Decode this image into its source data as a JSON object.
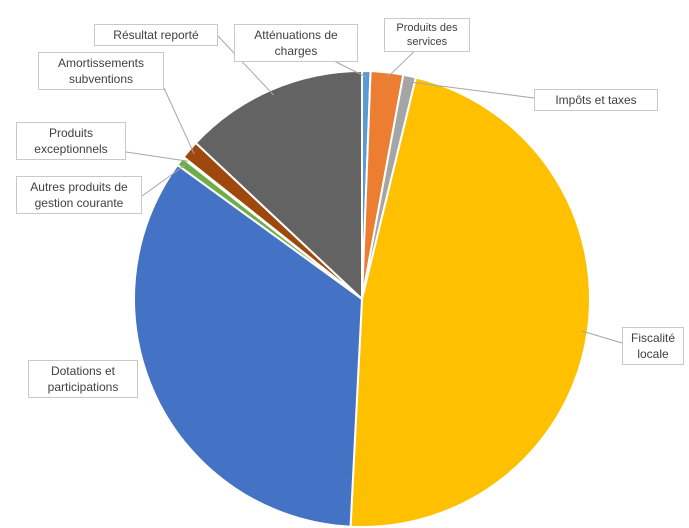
{
  "chart_data": {
    "type": "pie",
    "title": "",
    "legend": "none",
    "slices": [
      {
        "label": "Atténuations de charges",
        "value": 0.6,
        "color": "#5b9bd5"
      },
      {
        "label": "Produits des services",
        "value": 2.3,
        "color": "#ed7d31"
      },
      {
        "label": "Impôts et taxes",
        "value": 0.9,
        "color": "#a5a5a5"
      },
      {
        "label": "Fiscalité locale",
        "value": 47.0,
        "color": "#ffc000"
      },
      {
        "label": "Dotations et participations",
        "value": 34.2,
        "color": "#4472c4"
      },
      {
        "label": "Autres produits de gestion courante",
        "value": 0.6,
        "color": "#70ad47"
      },
      {
        "label": "Produits exceptionnels",
        "value": 0.1,
        "color": "#264478"
      },
      {
        "label": "Amortissements subventions",
        "value": 1.3,
        "color": "#9e480e"
      },
      {
        "label": "Résultat reporté",
        "value": 13.0,
        "color": "#636363"
      }
    ]
  }
}
